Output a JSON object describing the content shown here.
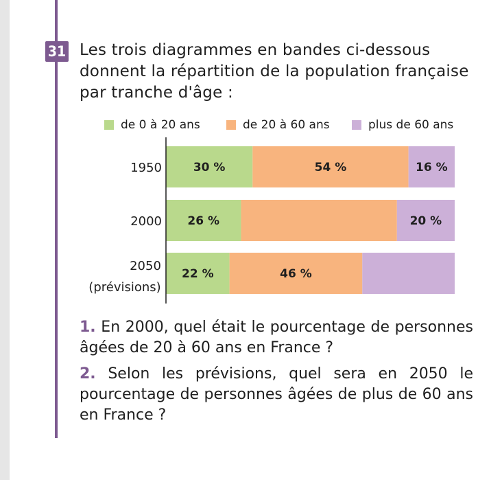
{
  "exercise": {
    "number": "31",
    "statement": "Les trois diagrammes en bandes ci-dessous donnent la répartition de la population française par tranche d'âge :"
  },
  "colors": {
    "accent": "#7d5a90",
    "green": "#b9d98c",
    "orange": "#f8b47e",
    "purple": "#ccb0d8"
  },
  "chart_data": {
    "type": "bar",
    "orientation": "horizontal",
    "stacked": true,
    "legend_position": "top",
    "xlim": [
      0,
      100
    ],
    "categories": [
      {
        "line1": "1950",
        "line2": ""
      },
      {
        "line1": "2000",
        "line2": ""
      },
      {
        "line1": "2050",
        "line2": "(prévisions)"
      }
    ],
    "series": [
      {
        "name": "de 0 à 20 ans",
        "color": "#b9d98c",
        "values": [
          30,
          26,
          22
        ],
        "labels": [
          "30 %",
          "26 %",
          "22 %"
        ]
      },
      {
        "name": "de 20 à 60 ans",
        "color": "#f8b47e",
        "values": [
          54,
          54,
          46
        ],
        "labels": [
          "54 %",
          "",
          "46 %"
        ]
      },
      {
        "name": "plus de 60 ans",
        "color": "#ccb0d8",
        "values": [
          16,
          20,
          32
        ],
        "labels": [
          "16 %",
          "20 %",
          ""
        ]
      }
    ]
  },
  "questions": [
    {
      "num": "1.",
      "text": " En 2000, quel était le pourcentage de personnes âgées de 20 à 60 ans en France ?"
    },
    {
      "num": "2.",
      "text": " Selon les prévisions, quel sera en 2050 le pourcentage de personnes âgées de plus de 60 ans en France ?"
    }
  ]
}
